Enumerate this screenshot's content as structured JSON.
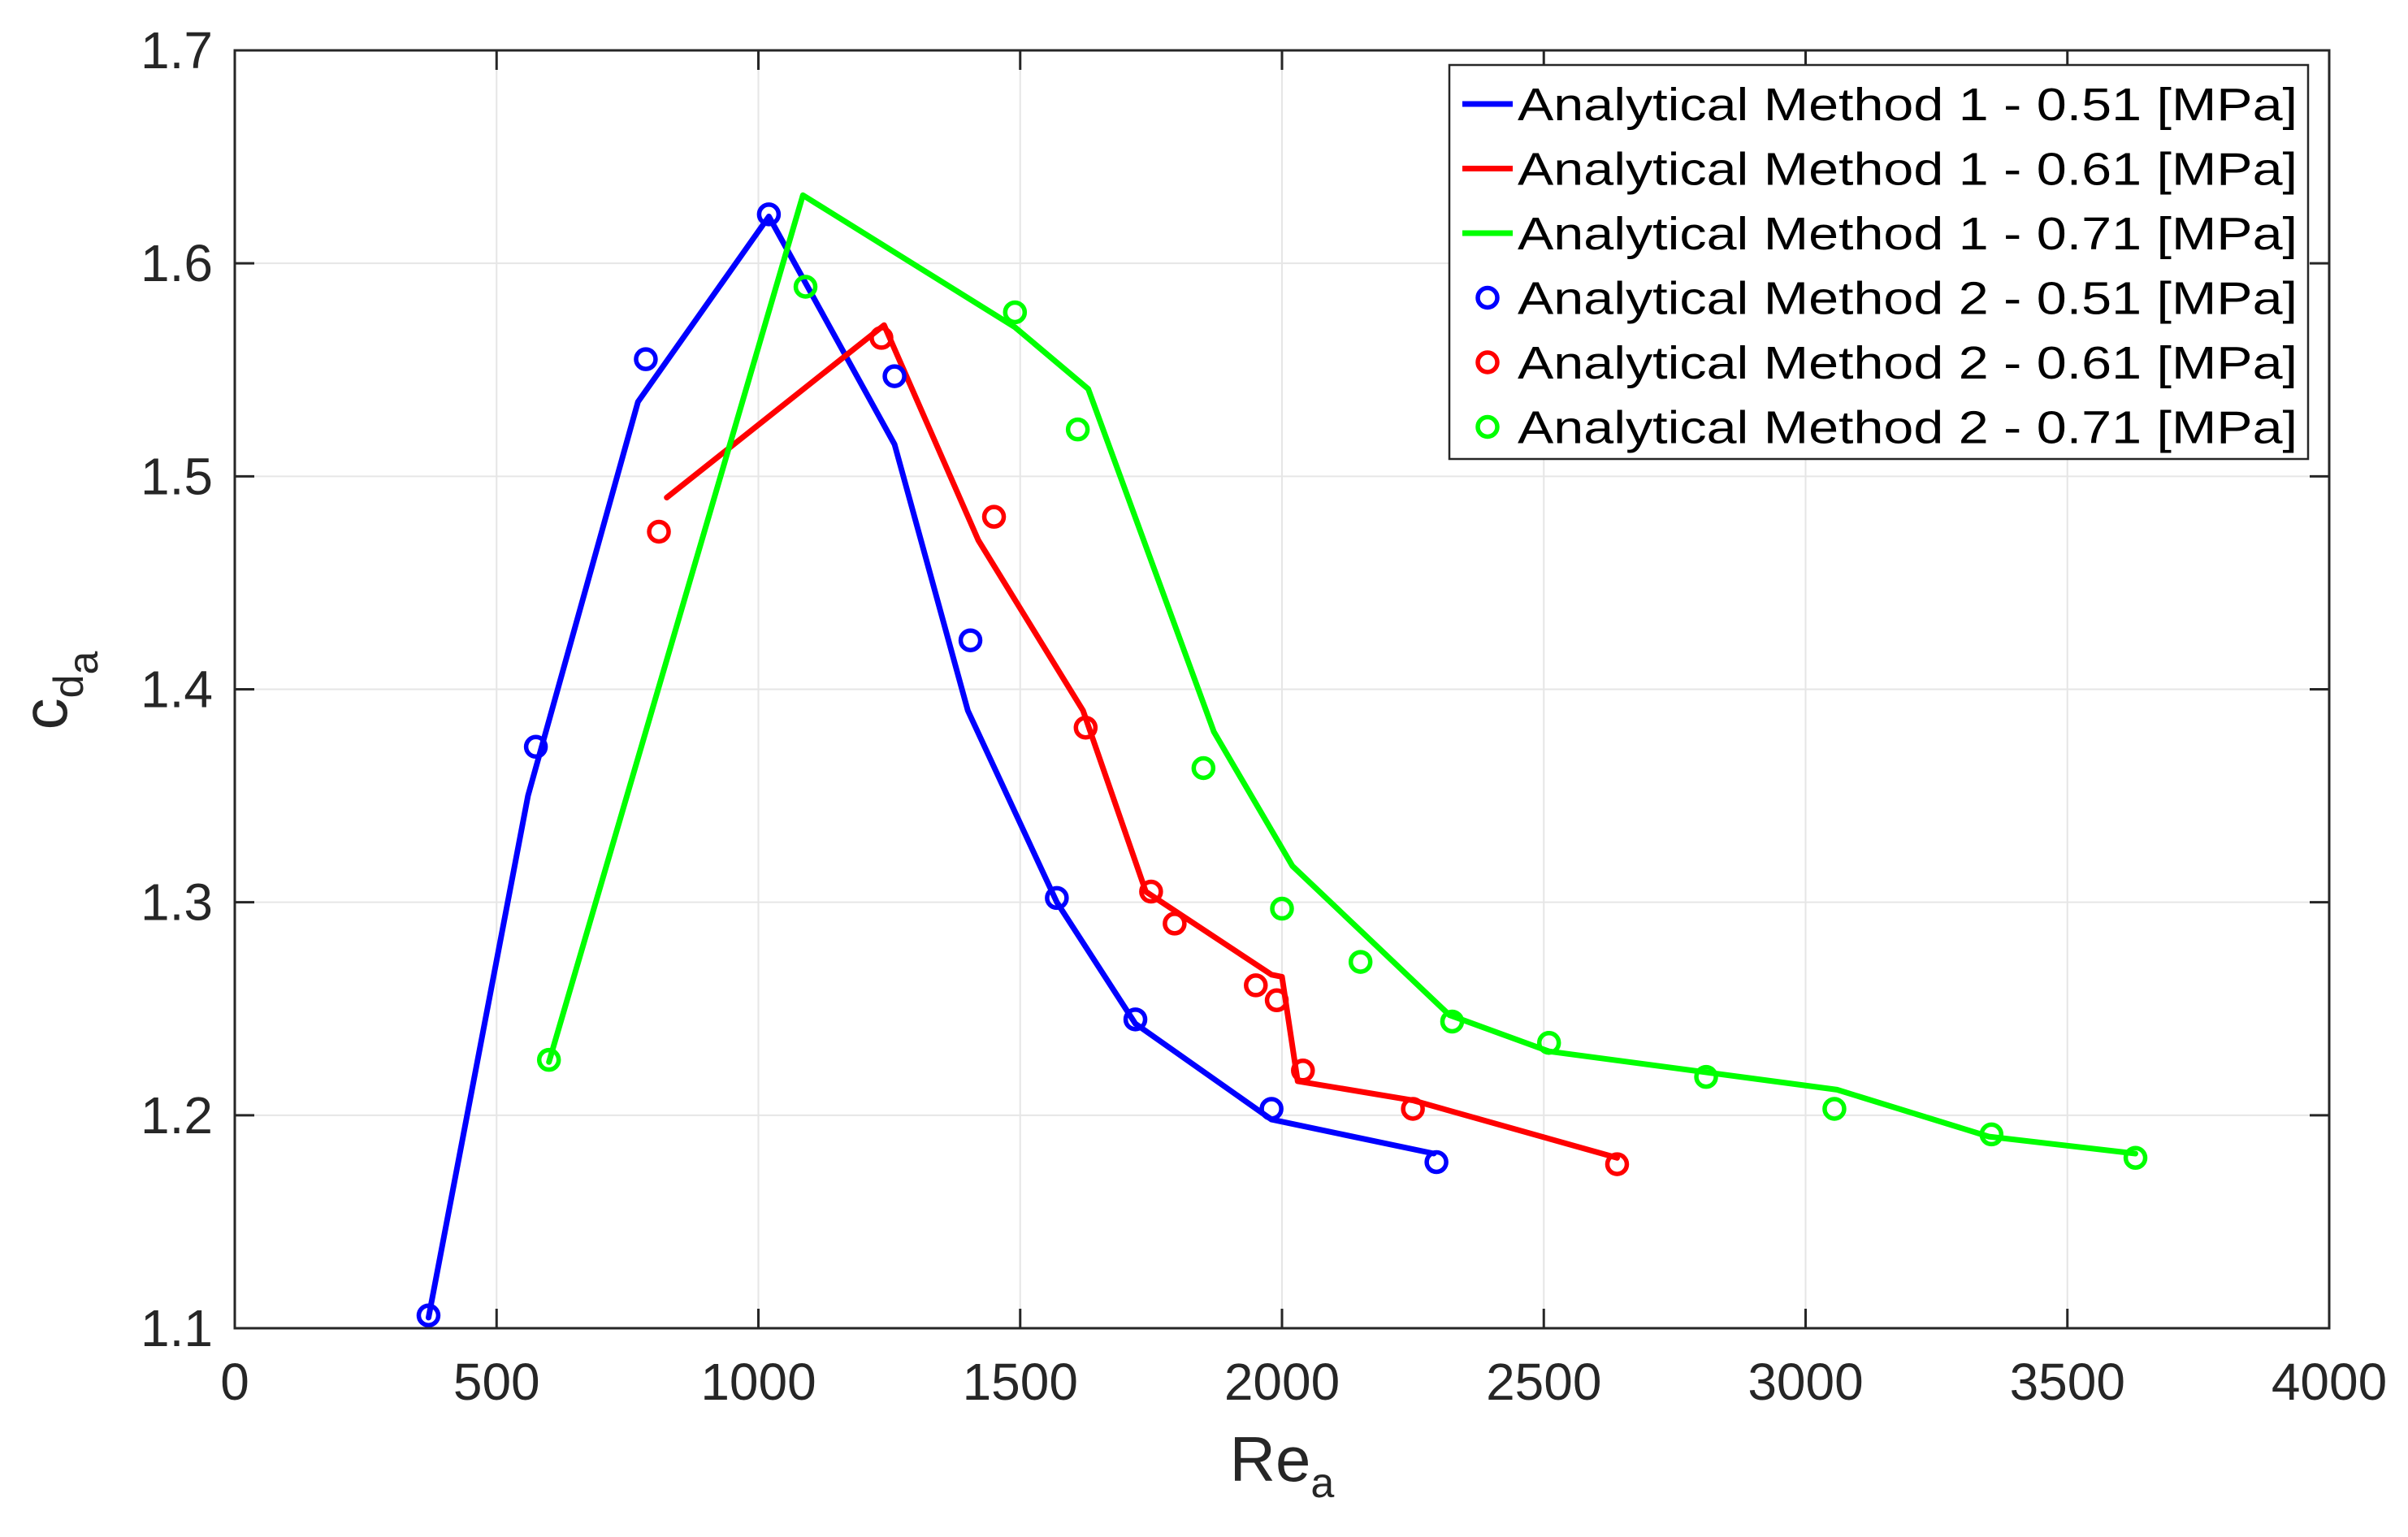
{
  "chart_data": {
    "type": "line",
    "title": "",
    "xlabel": {
      "main": "Re",
      "sub": "a"
    },
    "ylabel": {
      "main": "c",
      "sub1": "d",
      "sub2": "a"
    },
    "xlim": [
      0,
      4000
    ],
    "ylim": [
      1.1,
      1.7
    ],
    "xticks": [
      0,
      500,
      1000,
      1500,
      2000,
      2500,
      3000,
      3500,
      4000
    ],
    "yticks": [
      1.1,
      1.2,
      1.3,
      1.4,
      1.5,
      1.6,
      1.7
    ],
    "xtick_labels": [
      "0",
      "500",
      "1000",
      "1500",
      "2000",
      "2500",
      "3000",
      "3500",
      "4000"
    ],
    "ytick_labels": [
      "1.1",
      "1.2",
      "1.3",
      "1.4",
      "1.5",
      "1.6",
      "1.7"
    ],
    "grid": true,
    "legend_position": "top-right",
    "series": [
      {
        "name": "Analytical Method 1 - 0.51 [MPa]",
        "kind": "line",
        "color": "#0000ff",
        "x": [
          370,
          560,
          770,
          1020,
          1260,
          1400,
          1570,
          1720,
          1980,
          2290
        ],
        "y": [
          1.105,
          1.35,
          1.535,
          1.622,
          1.515,
          1.39,
          1.3,
          1.243,
          1.198,
          1.182
        ]
      },
      {
        "name": "Analytical Method 1 - 0.61 [MPa]",
        "kind": "line",
        "color": "#ff0000",
        "x": [
          825,
          1240,
          1420,
          1620,
          1740,
          1980,
          2000,
          2030,
          2250,
          2640
        ],
        "y": [
          1.49,
          1.571,
          1.47,
          1.39,
          1.305,
          1.266,
          1.265,
          1.216,
          1.207,
          1.18
        ]
      },
      {
        "name": "Analytical Method 1 - 0.71 [MPa]",
        "kind": "line",
        "color": "#00ff00",
        "x": [
          600,
          1085,
          1490,
          1630,
          1870,
          2020,
          2320,
          2510,
          3060,
          3350,
          3630
        ],
        "y": [
          1.225,
          1.632,
          1.57,
          1.541,
          1.38,
          1.317,
          1.247,
          1.23,
          1.212,
          1.19,
          1.182
        ]
      },
      {
        "name": "Analytical Method 2 - 0.51 [MPa]",
        "kind": "marker",
        "color": "#0000ff",
        "x": [
          370,
          575,
          785,
          1020,
          1260,
          1405,
          1570,
          1720,
          1980,
          2295
        ],
        "y": [
          1.106,
          1.373,
          1.555,
          1.623,
          1.547,
          1.423,
          1.302,
          1.245,
          1.203,
          1.178
        ]
      },
      {
        "name": "Analytical Method 2 - 0.61 [MPa]",
        "kind": "marker",
        "color": "#ff0000",
        "x": [
          810,
          1235,
          1450,
          1625,
          1750,
          1795,
          1950,
          1990,
          2040,
          2250,
          2640
        ],
        "y": [
          1.474,
          1.565,
          1.481,
          1.382,
          1.305,
          1.29,
          1.261,
          1.254,
          1.221,
          1.203,
          1.177
        ]
      },
      {
        "name": "Analytical Method 2 - 0.71 [MPa]",
        "kind": "marker",
        "color": "#00ff00",
        "x": [
          600,
          1090,
          1490,
          1610,
          1850,
          2000,
          2150,
          2325,
          2510,
          2810,
          3055,
          3355,
          3630
        ],
        "y": [
          1.226,
          1.589,
          1.577,
          1.522,
          1.363,
          1.297,
          1.272,
          1.244,
          1.234,
          1.218,
          1.203,
          1.191,
          1.18
        ]
      }
    ]
  }
}
